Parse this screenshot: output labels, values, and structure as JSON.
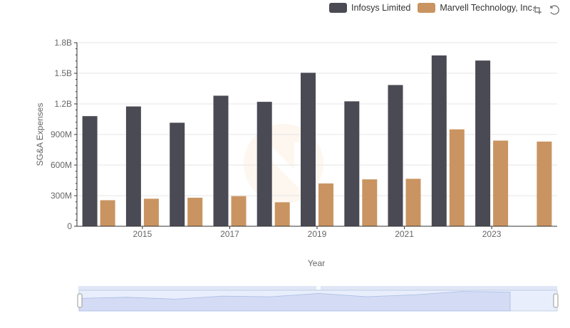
{
  "legend": {
    "items": [
      {
        "label": "Infosys Limited",
        "color": "#4a4a55"
      },
      {
        "label": "Marvell Technology, Inc.",
        "color": "#c99461"
      }
    ]
  },
  "toolbox": {
    "icons": [
      "zoom-icon",
      "restore-icon"
    ]
  },
  "chart_data": {
    "type": "bar",
    "x": [
      2014,
      2015,
      2016,
      2017,
      2018,
      2019,
      2020,
      2021,
      2022,
      2023,
      2024
    ],
    "x_tick_labels": [
      "2015",
      "2017",
      "2019",
      "2021",
      "2023"
    ],
    "xlabel": "Year",
    "ylabel": "SG&A Expenses",
    "ylim": [
      0,
      1800000000
    ],
    "y_ticks": [
      {
        "value": 0,
        "label": "0"
      },
      {
        "value": 300000000,
        "label": "300M"
      },
      {
        "value": 600000000,
        "label": "600M"
      },
      {
        "value": 900000000,
        "label": "900M"
      },
      {
        "value": 1200000000,
        "label": "1.2B"
      },
      {
        "value": 1500000000,
        "label": "1.5B"
      },
      {
        "value": 1800000000,
        "label": "1.8B"
      }
    ],
    "grid": true,
    "legend_position": "top-right",
    "series": [
      {
        "name": "Infosys Limited",
        "color": "#4a4a55",
        "values": [
          1080000000,
          1175000000,
          1015000000,
          1280000000,
          1220000000,
          1505000000,
          1225000000,
          1385000000,
          1675000000,
          1625000000,
          null
        ]
      },
      {
        "name": "Marvell Technology, Inc.",
        "color": "#c99461",
        "values": [
          255000000,
          270000000,
          280000000,
          295000000,
          235000000,
          420000000,
          460000000,
          465000000,
          950000000,
          840000000,
          830000000
        ]
      }
    ]
  }
}
